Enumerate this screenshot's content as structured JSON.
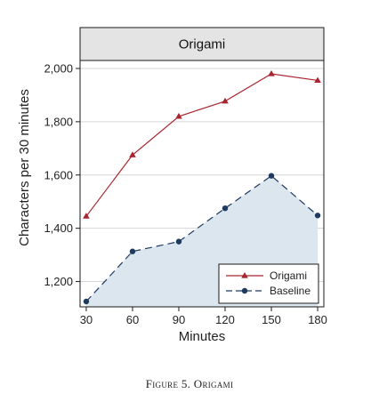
{
  "chart_data": {
    "type": "line",
    "title": "Origami",
    "xlabel": "Minutes",
    "ylabel": "Characters per 30 minutes",
    "x": [
      30,
      60,
      90,
      120,
      150,
      180
    ],
    "x_tick_labels": [
      "30",
      "60",
      "90",
      "120",
      "150",
      "180"
    ],
    "y_tick_values": [
      1200,
      1400,
      1600,
      1800,
      2000
    ],
    "y_tick_labels": [
      "1,200",
      "1,400",
      "1,600",
      "1,800",
      "2,000"
    ],
    "xlim": [
      26,
      184
    ],
    "ylim": [
      1105,
      2030
    ],
    "grid": true,
    "legend_position": "bottom-right",
    "series": [
      {
        "name": "Origami",
        "values": [
          1445,
          1675,
          1820,
          1877,
          1980,
          1955
        ],
        "color": "#a8242f",
        "marker": "triangle",
        "line_style": "solid"
      },
      {
        "name": "Baseline",
        "values": [
          1125,
          1313,
          1350,
          1475,
          1597,
          1448
        ],
        "color": "#1f3a5f",
        "marker": "circle",
        "line_style": "dashed",
        "fill": "#dce6ef"
      }
    ]
  },
  "caption": {
    "prefix": "Figure",
    "number": "5.",
    "name": "Origami"
  }
}
